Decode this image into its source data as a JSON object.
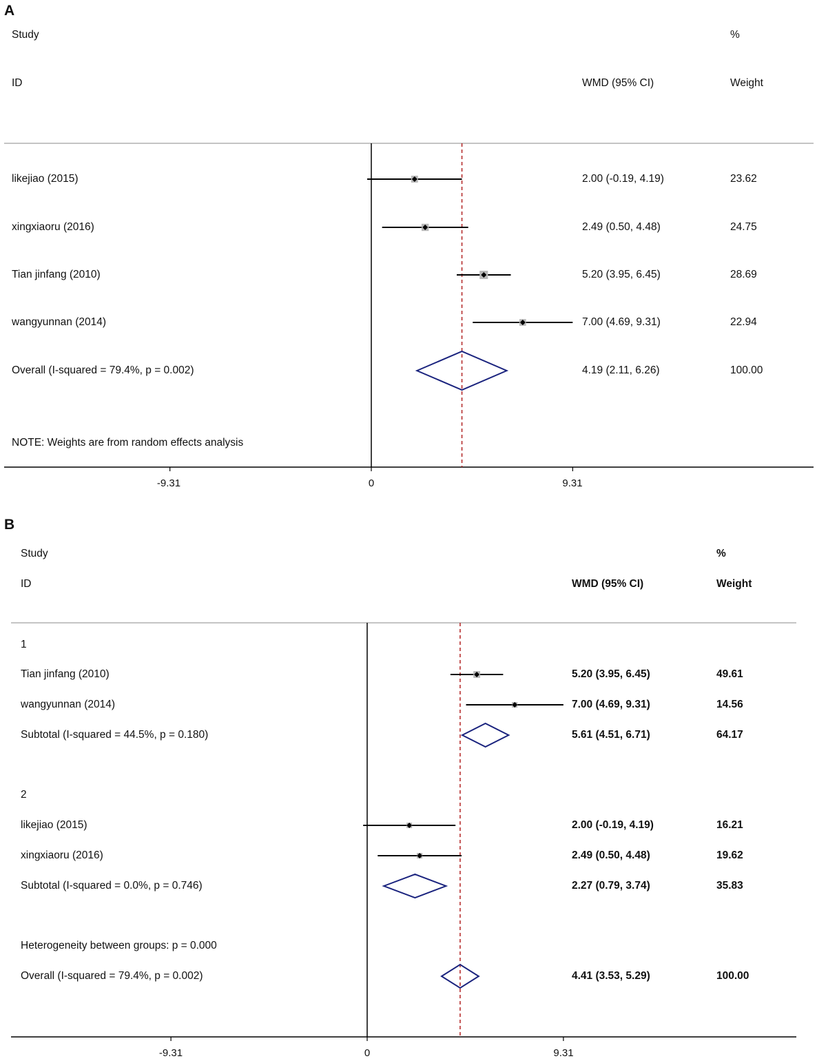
{
  "panels": [
    {
      "label": "A",
      "header": {
        "study": "Study",
        "id": "ID",
        "effect": "WMD (95% CI)",
        "pct": "%",
        "weight": "Weight"
      },
      "note": "NOTE: Weights are from random effects analysis",
      "ticks": [
        "-9.31",
        "0",
        "9.31"
      ]
    },
    {
      "label": "B",
      "header": {
        "study": "Study",
        "id": "ID",
        "effect": "WMD (95% CI)",
        "pct": "%",
        "weight": "Weight"
      },
      "heterogeneity": "Heterogeneity between groups: p = 0.000",
      "ticks": [
        "-9.31",
        "0",
        "9.31"
      ]
    }
  ],
  "chart_data": [
    {
      "type": "forest",
      "measure": "WMD (95% CI)",
      "xlim": [
        -17,
        20
      ],
      "ticks": [
        -9.31,
        0,
        9.31
      ],
      "reference_line": 0,
      "overall_line": 4.19,
      "rows": [
        {
          "kind": "study",
          "label": "likejiao (2015)",
          "estimate": 2.0,
          "lower": -0.19,
          "upper": 4.19,
          "ci_text": "2.00 (-0.19, 4.19)",
          "weight": "23.62"
        },
        {
          "kind": "study",
          "label": "xingxiaoru (2016)",
          "estimate": 2.49,
          "lower": 0.5,
          "upper": 4.48,
          "ci_text": "2.49 (0.50, 4.48)",
          "weight": "24.75"
        },
        {
          "kind": "study",
          "label": "Tian jinfang (2010)",
          "estimate": 5.2,
          "lower": 3.95,
          "upper": 6.45,
          "ci_text": "5.20 (3.95, 6.45)",
          "weight": "28.69"
        },
        {
          "kind": "study",
          "label": "wangyunnan (2014)",
          "estimate": 7.0,
          "lower": 4.69,
          "upper": 9.31,
          "ci_text": "7.00 (4.69, 9.31)",
          "weight": "22.94"
        },
        {
          "kind": "overall",
          "label": "Overall  (I-squared = 79.4%, p = 0.002)",
          "estimate": 4.19,
          "lower": 2.11,
          "upper": 6.26,
          "ci_text": "4.19 (2.11, 6.26)",
          "weight": "100.00"
        }
      ]
    },
    {
      "type": "forest",
      "measure": "WMD (95% CI)",
      "xlim": [
        -17,
        20
      ],
      "ticks": [
        -9.31,
        0,
        9.31
      ],
      "reference_line": 0,
      "overall_line": 4.41,
      "rows": [
        {
          "kind": "group",
          "label": "1"
        },
        {
          "kind": "study",
          "label": "Tian jinfang (2010)",
          "estimate": 5.2,
          "lower": 3.95,
          "upper": 6.45,
          "ci_text": "5.20 (3.95, 6.45)",
          "weight": "49.61"
        },
        {
          "kind": "study",
          "label": "wangyunnan (2014)",
          "estimate": 7.0,
          "lower": 4.69,
          "upper": 9.31,
          "ci_text": "7.00 (4.69, 9.31)",
          "weight": "14.56"
        },
        {
          "kind": "subtotal",
          "label": "Subtotal  (I-squared = 44.5%, p = 0.180)",
          "estimate": 5.61,
          "lower": 4.51,
          "upper": 6.71,
          "ci_text": "5.61 (4.51, 6.71)",
          "weight": "64.17"
        },
        {
          "kind": "group",
          "label": "2"
        },
        {
          "kind": "study",
          "label": "likejiao (2015)",
          "estimate": 2.0,
          "lower": -0.19,
          "upper": 4.19,
          "ci_text": "2.00 (-0.19, 4.19)",
          "weight": "16.21"
        },
        {
          "kind": "study",
          "label": "xingxiaoru (2016)",
          "estimate": 2.49,
          "lower": 0.5,
          "upper": 4.48,
          "ci_text": "2.49 (0.50, 4.48)",
          "weight": "19.62"
        },
        {
          "kind": "subtotal",
          "label": "Subtotal  (I-squared = 0.0%, p = 0.746)",
          "estimate": 2.27,
          "lower": 0.79,
          "upper": 3.74,
          "ci_text": "2.27 (0.79, 3.74)",
          "weight": "35.83"
        },
        {
          "kind": "overall",
          "label": "Overall  (I-squared = 79.4%, p = 0.002)",
          "estimate": 4.41,
          "lower": 3.53,
          "upper": 5.29,
          "ci_text": "4.41 (3.53, 5.29)",
          "weight": "100.00"
        }
      ]
    }
  ]
}
